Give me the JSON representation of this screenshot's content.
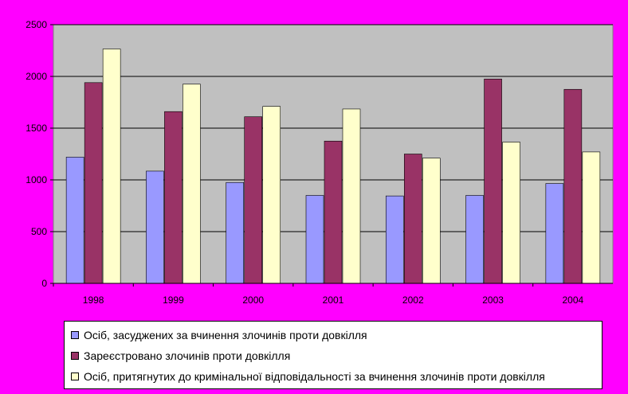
{
  "chart_data": {
    "type": "bar",
    "categories": [
      "1998",
      "1999",
      "2000",
      "2001",
      "2002",
      "2003",
      "2004"
    ],
    "series": [
      {
        "name": "Осіб, засуджених за вчинення злочинів проти довкілля",
        "color": "#9999ff",
        "values": [
          1220,
          1085,
          975,
          850,
          845,
          850,
          965
        ]
      },
      {
        "name": "Зареєстровано злочинів проти довкілля",
        "color": "#993366",
        "values": [
          1940,
          1660,
          1610,
          1375,
          1250,
          1975,
          1875
        ]
      },
      {
        "name": "Осіб, притягнутих до кримінальної відповідальності за вчинення злочинів проти довкілля",
        "color": "#ffffcc",
        "values": [
          2265,
          1925,
          1710,
          1685,
          1210,
          1365,
          1270
        ]
      }
    ],
    "yticks": [
      "0",
      "500",
      "1000",
      "1500",
      "2000",
      "2500"
    ],
    "ylim": [
      0,
      2500
    ],
    "grid": true,
    "legend_position": "bottom"
  }
}
